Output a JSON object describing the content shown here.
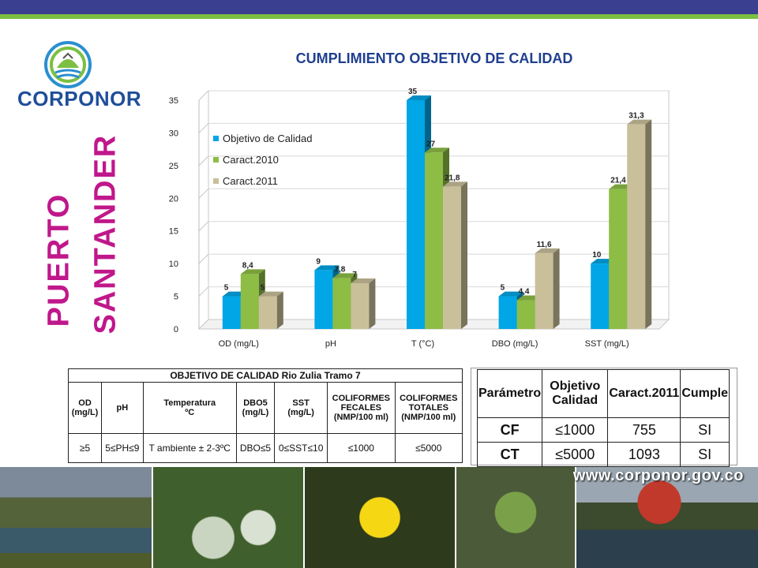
{
  "header": {
    "brand_bar_color": "#3a3f8f",
    "accent_color": "#7bc043"
  },
  "logo": {
    "text": "CORPONOR"
  },
  "side_title": {
    "line1": "PUERTO",
    "line2": "SANTANDER",
    "color": "#c0178b"
  },
  "chart_data": {
    "type": "bar",
    "title": "CUMPLIMIENTO OBJETIVO DE CALIDAD",
    "categories": [
      "OD (mg/L)",
      "pH",
      "T (°C)",
      "DBO (mg/L)",
      "SST (mg/L)"
    ],
    "series": [
      {
        "name": "Objetivo de Calidad",
        "color": "#00a6e6",
        "values": [
          5,
          9,
          35,
          5,
          10
        ],
        "labels": [
          "5",
          "9",
          "35",
          "5",
          "10"
        ]
      },
      {
        "name": "Caract.2010",
        "color": "#8dbd45",
        "values": [
          8.4,
          7.8,
          27,
          4.4,
          21.4
        ],
        "labels": [
          "8,4",
          "7,8",
          "27",
          "4,4",
          "21,4"
        ]
      },
      {
        "name": "Caract.2011",
        "color": "#c9c09a",
        "values": [
          5,
          7,
          21.8,
          11.6,
          31.3
        ],
        "labels": [
          "5",
          "7",
          "21,8",
          "11,6",
          "31,3"
        ]
      }
    ],
    "yticks": [
      "0",
      "5",
      "10",
      "15",
      "20",
      "25",
      "30",
      "35"
    ],
    "ylim": [
      0,
      35
    ],
    "legend_position": "top-left"
  },
  "table1": {
    "caption": "OBJETIVO DE CALIDAD Rio Zulia Tramo 7",
    "headers": [
      [
        "OD",
        "(mg/L)"
      ],
      [
        "pH"
      ],
      [
        "Temperatura",
        "ºC"
      ],
      [
        "DBO5",
        "(mg/L)"
      ],
      [
        "SST",
        "(mg/L)"
      ],
      [
        "COLIFORMES",
        "FECALES",
        "(NMP/100 ml)"
      ],
      [
        "COLIFORMES",
        "TOTALES",
        "(NMP/100 ml)"
      ]
    ],
    "values": [
      "≥5",
      "5≤PH≤9",
      "T ambiente ± 2-3ºC",
      "DBO≤5",
      "0≤SST≤10",
      "≤1000",
      "≤5000"
    ]
  },
  "table2": {
    "headers": [
      "Parámetro",
      "Objetivo Calidad",
      "Caract.2011",
      "Cumple"
    ],
    "rows": [
      [
        "CF",
        "≤1000",
        "755",
        "SI"
      ],
      [
        "CT",
        "≤5000",
        "1093",
        "SI"
      ]
    ]
  },
  "footer": {
    "url": "www.corponor.gov.co"
  }
}
